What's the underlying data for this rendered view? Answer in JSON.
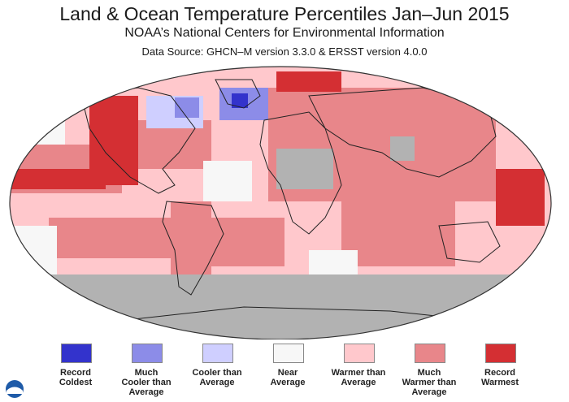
{
  "header": {
    "title": "Land & Ocean Temperature Percentiles Jan–Jun 2015",
    "subtitle": "NOAA’s National Centers for Environmental Information",
    "source": "Data Source: GHCN–M version 3.3.0 & ERSST version 4.0.0"
  },
  "colors": {
    "record_coldest": "#3333cc",
    "much_cooler": "#8c8ce8",
    "cooler": "#cfcfff",
    "near_average": "#f7f7f7",
    "warmer": "#ffc8cc",
    "much_warmer": "#e8868a",
    "record_warmest": "#d42f33",
    "no_data": "#b2b2b2"
  },
  "legend": [
    {
      "label_lines": [
        "Record",
        "Coldest"
      ],
      "color_key": "record_coldest"
    },
    {
      "label_lines": [
        "Much",
        "Cooler than",
        "Average"
      ],
      "color_key": "much_cooler"
    },
    {
      "label_lines": [
        "Cooler than",
        "Average"
      ],
      "color_key": "cooler"
    },
    {
      "label_lines": [
        "Near",
        "Average"
      ],
      "color_key": "near_average"
    },
    {
      "label_lines": [
        "Warmer than",
        "Average"
      ],
      "color_key": "warmer"
    },
    {
      "label_lines": [
        "Much",
        "Warmer than",
        "Average"
      ],
      "color_key": "much_warmer"
    },
    {
      "label_lines": [
        "Record",
        "Warmest"
      ],
      "color_key": "record_warmest"
    }
  ],
  "logo": {
    "name": "NOAA"
  }
}
